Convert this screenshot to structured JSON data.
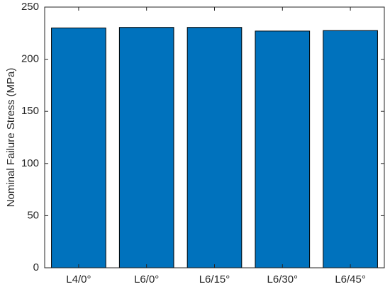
{
  "chart_data": {
    "type": "bar",
    "y_label": "Nominal Failure Stress (MPa)",
    "categories": [
      "L4/0°",
      "L6/0°",
      "L6/15°",
      "L6/30°",
      "L6/45°"
    ],
    "values": [
      230,
      230.5,
      230.5,
      227,
      227.5
    ],
    "color": "#0072bd",
    "ylim": [
      0,
      250
    ],
    "yticks": [
      0,
      50,
      100,
      150,
      200,
      250
    ],
    "grid": false
  }
}
